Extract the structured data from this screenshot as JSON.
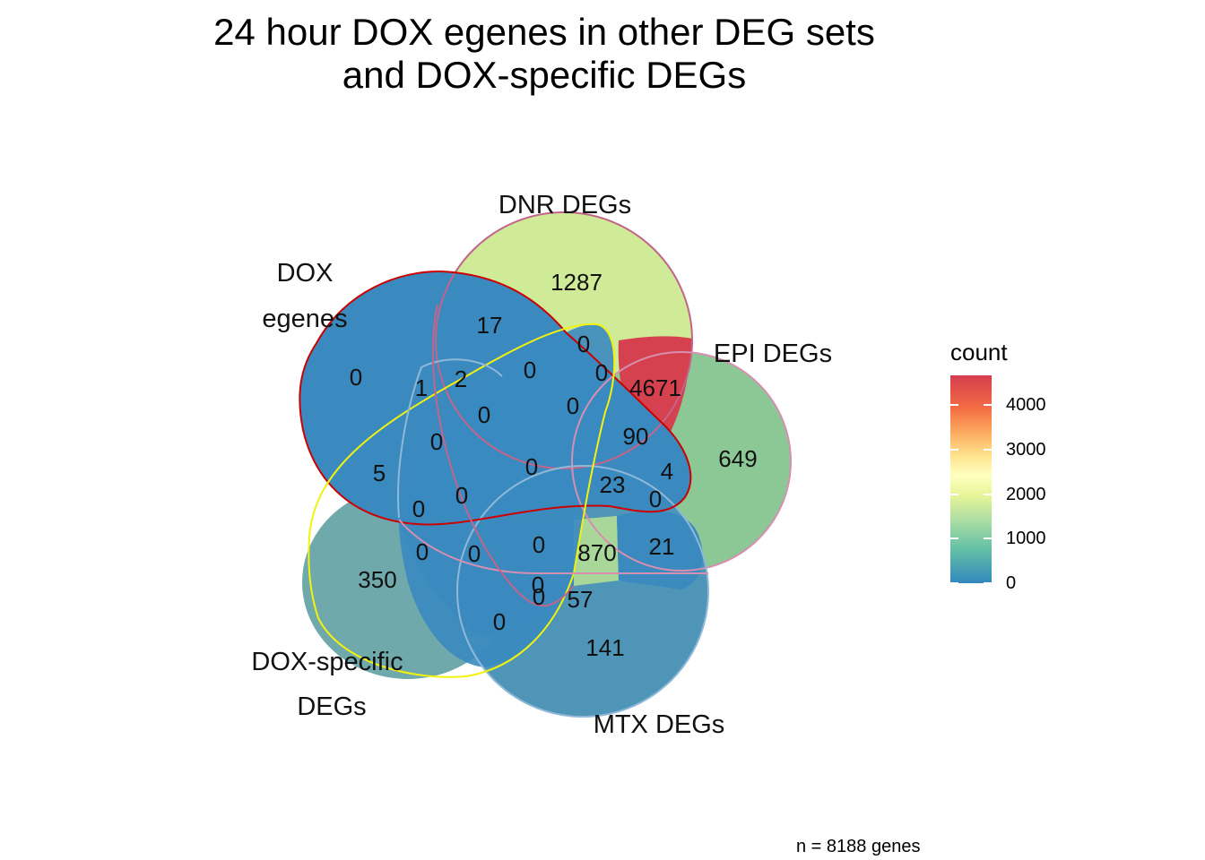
{
  "title_line1": "24 hour DOX egenes in other DEG sets",
  "title_line2": "and DOX-specific DEGs",
  "caption": "n = 8188 genes",
  "colors": {
    "low": "#3288bd",
    "high": "#d53e4f",
    "dox_egenes_edge": "#cc0000",
    "dnr_edge": "#c2658a",
    "epi_edge": "#d58fb0",
    "mtx_edge": "#8fb8d8",
    "dox_specific_edge": "#f2f20d"
  },
  "legend": {
    "title": "count",
    "ticks": [
      "4000",
      "3000",
      "2000",
      "1000",
      "0"
    ]
  },
  "chart_data": {
    "type": "venn",
    "title": "24 hour DOX egenes in other DEG sets\nand DOX-specific DEGs",
    "sets": [
      {
        "name_lines": [
          "DOX",
          "egenes"
        ]
      },
      {
        "name_lines": [
          "DNR DEGs"
        ]
      },
      {
        "name_lines": [
          "EPI DEGs"
        ]
      },
      {
        "name_lines": [
          "MTX DEGs"
        ]
      },
      {
        "name_lines": [
          "DOX-specific",
          "DEGs"
        ]
      }
    ],
    "fill_scale": {
      "name": "count",
      "min": 0,
      "max": 4671,
      "palette": "Spectral"
    },
    "region_counts": [
      {
        "count": "1287"
      },
      {
        "count": "649"
      },
      {
        "count": "141"
      },
      {
        "count": "350"
      },
      {
        "count": "0"
      },
      {
        "count": "17"
      },
      {
        "count": "4671"
      },
      {
        "count": "21"
      },
      {
        "count": "57"
      },
      {
        "count": "870"
      },
      {
        "count": "0"
      },
      {
        "count": "0"
      },
      {
        "count": "1"
      },
      {
        "count": "2"
      },
      {
        "count": "0"
      },
      {
        "count": "0"
      },
      {
        "count": "0"
      },
      {
        "count": "0"
      },
      {
        "count": "90"
      },
      {
        "count": "4"
      },
      {
        "count": "0"
      },
      {
        "count": "23"
      },
      {
        "count": "0"
      },
      {
        "count": "0"
      },
      {
        "count": "0"
      },
      {
        "count": "5"
      },
      {
        "count": "0"
      },
      {
        "count": "0"
      },
      {
        "count": "0"
      },
      {
        "count": "0"
      },
      {
        "count": "0"
      },
      {
        "count": "0"
      }
    ],
    "total_caption": "n = 8188 genes"
  }
}
